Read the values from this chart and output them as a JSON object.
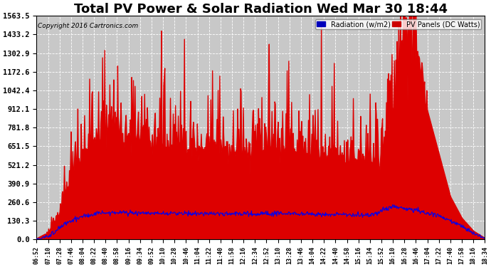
{
  "title": "Total PV Power & Solar Radiation Wed Mar 30 18:44",
  "copyright_text": "Copyright 2016 Cartronics.com",
  "legend_labels": [
    "Radiation (w/m2)",
    "PV Panels (DC Watts)"
  ],
  "ytick_values": [
    0.0,
    130.3,
    260.6,
    390.9,
    521.2,
    651.5,
    781.8,
    912.1,
    1042.4,
    1172.6,
    1302.9,
    1433.2,
    1563.5
  ],
  "ymax": 1693.0,
  "ymin": -20.0,
  "pv_fill_color": "#dd0000",
  "radiation_line_color": "#0000ee",
  "background_color": "#ffffff",
  "plot_bg_color": "#c8c8c8",
  "grid_color": "#ffffff",
  "title_fontsize": 13,
  "time_labels": [
    "06:52",
    "07:10",
    "07:28",
    "07:46",
    "08:04",
    "08:22",
    "08:40",
    "08:58",
    "09:16",
    "09:34",
    "09:52",
    "10:10",
    "10:28",
    "10:46",
    "11:04",
    "11:22",
    "11:40",
    "11:58",
    "12:16",
    "12:34",
    "12:52",
    "13:10",
    "13:28",
    "13:46",
    "14:04",
    "14:22",
    "14:40",
    "14:58",
    "15:16",
    "15:34",
    "15:52",
    "16:10",
    "16:28",
    "16:46",
    "17:04",
    "17:22",
    "17:40",
    "17:58",
    "18:16",
    "18:34"
  ]
}
